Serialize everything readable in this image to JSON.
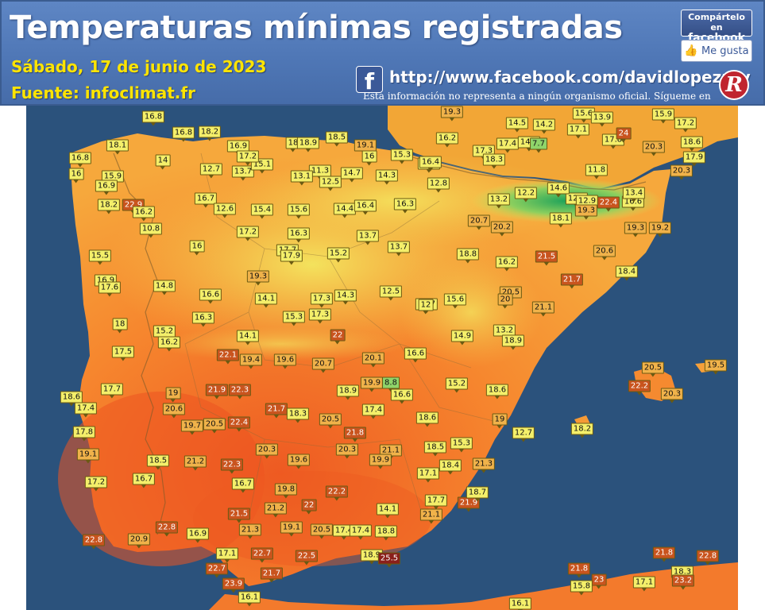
{
  "header": {
    "title": "Temperaturas mínimas registradas",
    "date": "Sábado, 17 de junio de 2023",
    "source": "Fuente: infoclimat.fr",
    "facebook_url": "http://www.facebook.com/davidlopezrey",
    "disclaimer": "Esta información no representa a ningún organismo oficial. Sígueme en",
    "share_line1": "Compártelo en",
    "share_line2": "facebook",
    "like_label": "Me gusta",
    "icons": [
      "facebook-logo-icon",
      "like-thumb-icon",
      "author-logo-icon"
    ]
  },
  "colors": {
    "header_bg": "#4f77b6",
    "title": "#ffffff",
    "subtitle": "#ffe400",
    "sea": "#2b527c",
    "land_warm": "#f36a2a",
    "land_cool": "#f3e05a",
    "land_cold": "#35b45a",
    "label_cool": "#f4ef6a",
    "label_warm": "#f0b24a",
    "label_hot": "#c9541e"
  },
  "stations": [
    {
      "v": "16.8"
    },
    {
      "v": "16.8"
    },
    {
      "v": "18.2"
    },
    {
      "v": "18.1"
    },
    {
      "v": "16.8"
    },
    {
      "v": "14"
    },
    {
      "v": "16"
    },
    {
      "v": "15.9"
    },
    {
      "v": "16.9"
    },
    {
      "v": "18.2"
    },
    {
      "v": "22.9"
    },
    {
      "v": "16.2"
    },
    {
      "v": "10.8"
    },
    {
      "v": "12.7"
    },
    {
      "v": "13.7"
    },
    {
      "v": "15.1"
    },
    {
      "v": "16.9"
    },
    {
      "v": "17.2"
    },
    {
      "v": "18"
    },
    {
      "v": "18.9"
    },
    {
      "v": "18.5"
    },
    {
      "v": "19.1"
    },
    {
      "v": "16"
    },
    {
      "v": "15.3"
    },
    {
      "v": "11.3"
    },
    {
      "v": "13.1"
    },
    {
      "v": "12.5"
    },
    {
      "v": "14.7"
    },
    {
      "v": "14.3"
    },
    {
      "v": "16.7"
    },
    {
      "v": "12.6"
    },
    {
      "v": "15.4"
    },
    {
      "v": "15.6"
    },
    {
      "v": "14.4"
    },
    {
      "v": "16.4"
    },
    {
      "v": "16.3"
    },
    {
      "v": "15.5"
    },
    {
      "v": "16"
    },
    {
      "v": "17.2"
    },
    {
      "v": "16.3"
    },
    {
      "v": "13.7"
    },
    {
      "v": "13.7"
    },
    {
      "v": "17.7"
    },
    {
      "v": "17.9"
    },
    {
      "v": "15.2"
    },
    {
      "v": "16.9"
    },
    {
      "v": "17.6"
    },
    {
      "v": "14.8"
    },
    {
      "v": "19.3"
    },
    {
      "v": "16.6"
    },
    {
      "v": "14.1"
    },
    {
      "v": "17.3"
    },
    {
      "v": "14.3"
    },
    {
      "v": "12.5"
    },
    {
      "v": "16.7"
    },
    {
      "v": "12"
    },
    {
      "v": "15.6"
    },
    {
      "v": "17.3"
    },
    {
      "v": "15.3"
    },
    {
      "v": "18"
    },
    {
      "v": "16.3"
    },
    {
      "v": "15.2"
    },
    {
      "v": "16.2"
    },
    {
      "v": "14.1"
    },
    {
      "v": "22"
    },
    {
      "v": "17.5"
    },
    {
      "v": "22.1"
    },
    {
      "v": "19.4"
    },
    {
      "v": "19.6"
    },
    {
      "v": "20.7"
    },
    {
      "v": "20.1"
    },
    {
      "v": "16.6"
    },
    {
      "v": "14.9"
    },
    {
      "v": "13.2"
    },
    {
      "v": "17.7"
    },
    {
      "v": "19"
    },
    {
      "v": "21.9"
    },
    {
      "v": "22.3"
    },
    {
      "v": "18.9"
    },
    {
      "v": "19.9"
    },
    {
      "v": "8.8"
    },
    {
      "v": "16.6"
    },
    {
      "v": "15.2"
    },
    {
      "v": "18.6"
    },
    {
      "v": "17.4"
    },
    {
      "v": "20.6"
    },
    {
      "v": "17.8"
    },
    {
      "v": "19.7"
    },
    {
      "v": "20.5"
    },
    {
      "v": "22.4"
    },
    {
      "v": "21.7"
    },
    {
      "v": "18.3"
    },
    {
      "v": "20.5"
    },
    {
      "v": "17.4"
    },
    {
      "v": "21.8"
    },
    {
      "v": "18.6"
    },
    {
      "v": "20.3"
    },
    {
      "v": "19.1"
    },
    {
      "v": "18.5"
    },
    {
      "v": "21.2"
    },
    {
      "v": "22.3"
    },
    {
      "v": "19.6"
    },
    {
      "v": "20.3"
    },
    {
      "v": "21.1"
    },
    {
      "v": "19.9"
    },
    {
      "v": "18.5"
    },
    {
      "v": "15.3"
    },
    {
      "v": "18.4"
    },
    {
      "v": "21.3"
    },
    {
      "v": "17.1"
    },
    {
      "v": "17.2"
    },
    {
      "v": "16.7"
    },
    {
      "v": "16.7"
    },
    {
      "v": "19.8"
    },
    {
      "v": "22.2"
    },
    {
      "v": "21.2"
    },
    {
      "v": "22"
    },
    {
      "v": "21.5"
    },
    {
      "v": "14.1"
    },
    {
      "v": "17.7"
    },
    {
      "v": "21.9"
    },
    {
      "v": "18.7"
    },
    {
      "v": "21.1"
    },
    {
      "v": "22.8"
    },
    {
      "v": "21.3"
    },
    {
      "v": "19.1"
    },
    {
      "v": "20.5"
    },
    {
      "v": "17.4"
    },
    {
      "v": "17.4"
    },
    {
      "v": "18.8"
    },
    {
      "v": "22.8"
    },
    {
      "v": "20.9"
    },
    {
      "v": "16.9"
    },
    {
      "v": "17.1"
    },
    {
      "v": "22.7"
    },
    {
      "v": "22.5"
    },
    {
      "v": "18.9"
    },
    {
      "v": "25.5"
    },
    {
      "v": "22.7"
    },
    {
      "v": "23.9"
    },
    {
      "v": "21.7"
    },
    {
      "v": "16.1"
    },
    {
      "v": "19.3"
    },
    {
      "v": "16.2"
    },
    {
      "v": "14.5"
    },
    {
      "v": "14.2"
    },
    {
      "v": "15.6"
    },
    {
      "v": "13.9"
    },
    {
      "v": "15.9"
    },
    {
      "v": "17.2"
    },
    {
      "v": "17.1"
    },
    {
      "v": "17.3"
    },
    {
      "v": "17.4"
    },
    {
      "v": "14.7"
    },
    {
      "v": "18.3"
    },
    {
      "v": "7.7"
    },
    {
      "v": "17.8"
    },
    {
      "v": "24"
    },
    {
      "v": "20.3"
    },
    {
      "v": "18.6"
    },
    {
      "v": "17.9"
    },
    {
      "v": "20.3"
    },
    {
      "v": "16.6"
    },
    {
      "v": "16.4"
    },
    {
      "v": "12.8"
    },
    {
      "v": "11.8"
    },
    {
      "v": "12.5"
    },
    {
      "v": "12.2"
    },
    {
      "v": "14.6"
    },
    {
      "v": "13.2"
    },
    {
      "v": "12.9"
    },
    {
      "v": "22.4"
    },
    {
      "v": "19.3"
    },
    {
      "v": "16.6"
    },
    {
      "v": "13.4"
    },
    {
      "v": "18.1"
    },
    {
      "v": "19.3"
    },
    {
      "v": "19.2"
    },
    {
      "v": "20.7"
    },
    {
      "v": "20.2"
    },
    {
      "v": "18.8"
    },
    {
      "v": "16.2"
    },
    {
      "v": "21.5"
    },
    {
      "v": "20.6"
    },
    {
      "v": "18.4"
    },
    {
      "v": "21.7"
    },
    {
      "v": "20.5"
    },
    {
      "v": "20"
    },
    {
      "v": "21.1"
    },
    {
      "v": "18.9"
    },
    {
      "v": "18.6"
    },
    {
      "v": "19"
    },
    {
      "v": "12.7"
    },
    {
      "v": "18.2"
    },
    {
      "v": "20.5"
    },
    {
      "v": "19.5"
    },
    {
      "v": "22.2"
    },
    {
      "v": "20.3"
    },
    {
      "v": "21.8"
    },
    {
      "v": "22.8"
    },
    {
      "v": "18.3"
    },
    {
      "v": "23.2"
    },
    {
      "v": "21.8"
    },
    {
      "v": "23"
    },
    {
      "v": "17.1"
    },
    {
      "v": "15.8"
    },
    {
      "v": "16.1"
    }
  ]
}
